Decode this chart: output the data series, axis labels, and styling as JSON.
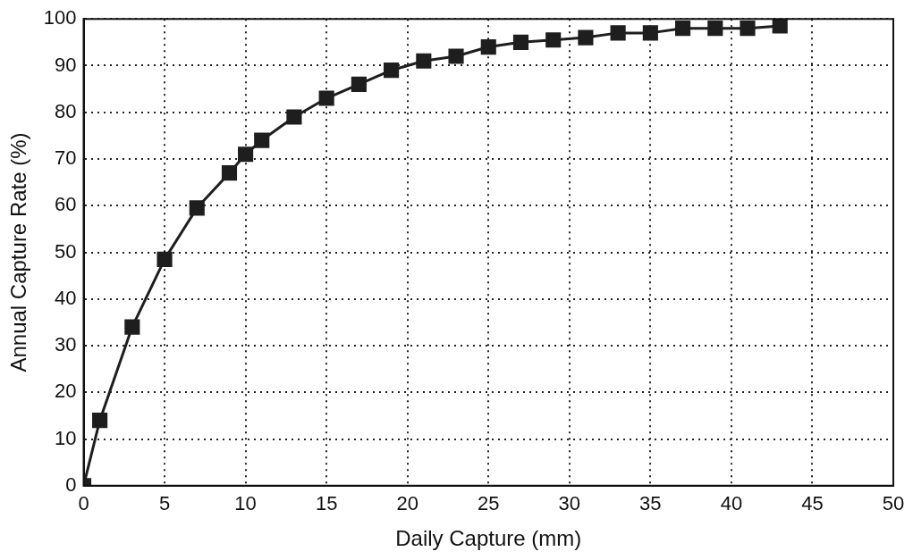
{
  "chart_data": {
    "type": "line",
    "xlabel": "Daily Capture (mm)",
    "ylabel": "Annual Capture Rate (%)",
    "x": [
      0,
      1,
      3,
      5,
      7,
      9,
      10,
      11,
      13,
      15,
      17,
      19,
      21,
      23,
      25,
      27,
      29,
      31,
      33,
      35,
      37,
      39,
      41,
      43
    ],
    "series": [
      {
        "color": "#1e1e1e",
        "values": [
          0,
          14,
          34,
          48.5,
          59.5,
          67,
          71,
          74,
          79,
          83,
          86,
          89,
          91,
          92,
          94,
          95,
          95.5,
          96,
          97,
          97,
          98,
          98,
          98,
          98.5
        ]
      }
    ],
    "xlim": [
      0,
      50
    ],
    "xticks": [
      0,
      5,
      10,
      15,
      20,
      25,
      30,
      35,
      40,
      45,
      50
    ],
    "ylim": [
      0,
      100
    ],
    "yticks": [
      0,
      10,
      20,
      30,
      40,
      50,
      60,
      70,
      80,
      90,
      100
    ],
    "grid": true,
    "legend": false,
    "marker": "square",
    "line_style": "solid"
  }
}
